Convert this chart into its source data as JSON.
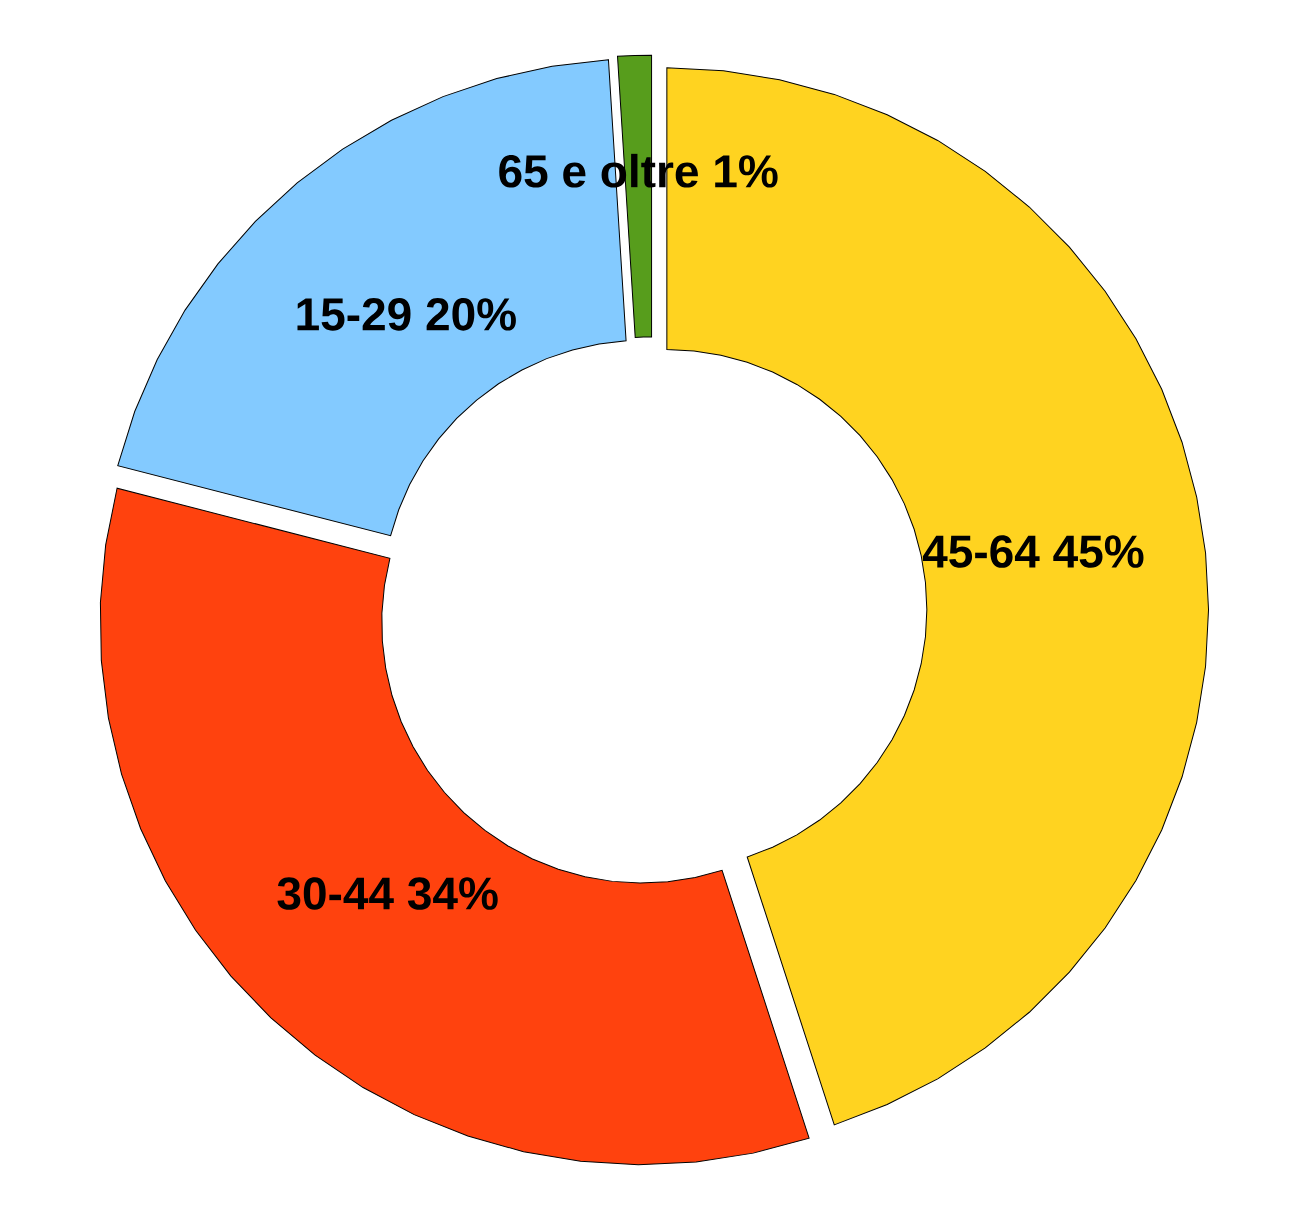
{
  "chart_data": {
    "type": "donut",
    "categories": [
      "65 e oltre",
      "15-29",
      "30-44",
      "45-64"
    ],
    "values": [
      1,
      20,
      34,
      45
    ],
    "value_labels": [
      "1%",
      "20%",
      "34%",
      "45%"
    ],
    "colors": [
      "#579d1c",
      "#83caff",
      "#ff420e",
      "#ffd320"
    ]
  }
}
